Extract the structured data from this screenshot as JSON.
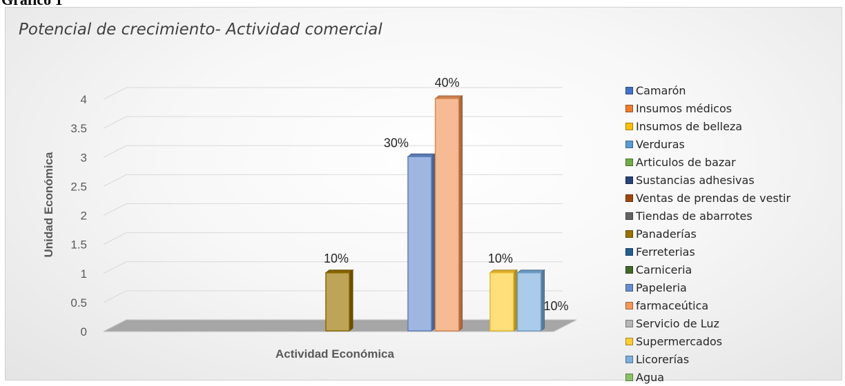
{
  "document": {
    "heading": "Gráfico 1"
  },
  "chart_data": {
    "type": "bar",
    "title": "Potencial de crecimiento- Actividad comercial",
    "xlabel": "Actividad Económica",
    "ylabel": "Unidad Económica",
    "ylim": [
      0,
      4
    ],
    "yticks": [
      "0",
      "0.5",
      "1",
      "1.5",
      "2",
      "2.5",
      "3",
      "3.5",
      "4"
    ],
    "grid": true,
    "legend_position": "right",
    "series": [
      {
        "name": "Camarón",
        "value": 0,
        "color": "#4472c4"
      },
      {
        "name": "Insumos médicos",
        "value": 0,
        "color": "#ed7d31"
      },
      {
        "name": "Insumos de belleza",
        "value": 0,
        "color": "#ffc000"
      },
      {
        "name": "Verduras",
        "value": 0,
        "color": "#5b9bd5"
      },
      {
        "name": "Articulos de bazar",
        "value": 0,
        "color": "#70ad47"
      },
      {
        "name": "Sustancias adhesivas",
        "value": 0,
        "color": "#264478"
      },
      {
        "name": "Ventas de prendas de vestir",
        "value": 0,
        "color": "#9e480e"
      },
      {
        "name": "Tiendas de abarrotes",
        "value": 0,
        "color": "#636363"
      },
      {
        "name": "Panaderías",
        "value": 1,
        "label": "10%",
        "color": "#997300"
      },
      {
        "name": "Ferreterias",
        "value": 0,
        "color": "#255e91"
      },
      {
        "name": "Carniceria",
        "value": 0,
        "color": "#43682b"
      },
      {
        "name": "Papeleria",
        "value": 3,
        "label": "30%",
        "color": "#698ed0"
      },
      {
        "name": "farmaceútica",
        "value": 4,
        "label": "40%",
        "color": "#f1975a"
      },
      {
        "name": "Servicio de Luz",
        "value": 0,
        "color": "#b7b7b7"
      },
      {
        "name": "Supermercados",
        "value": 1,
        "label": "10%",
        "color": "#ffcd33"
      },
      {
        "name": "Licorerías",
        "value": 1,
        "label": "10%",
        "color": "#7cafdd"
      },
      {
        "name": "Agua",
        "value": 0,
        "color": "#8cc168"
      }
    ]
  }
}
